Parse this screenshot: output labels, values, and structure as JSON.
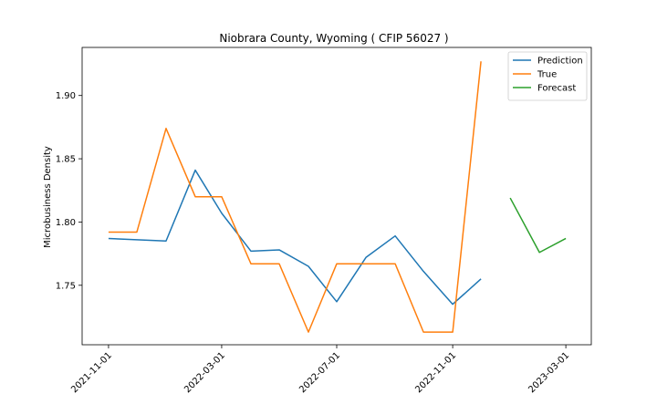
{
  "chart_data": {
    "type": "line",
    "title": "Niobrara County, Wyoming ( CFIP 56027 )",
    "xlabel": "",
    "ylabel": "Microbusiness Density",
    "x_ticks": [
      "2021-11-01",
      "2022-03-01",
      "2022-07-01",
      "2022-11-01",
      "2023-03-01"
    ],
    "y_ticks": [
      "1.75",
      "1.80",
      "1.85",
      "1.90"
    ],
    "xlim": [
      "2021-10-04",
      "2023-03-28"
    ],
    "ylim": [
      1.703,
      1.938
    ],
    "grid": false,
    "legend_position": "top-right",
    "series": [
      {
        "name": "Prediction",
        "color": "#1f77b4",
        "x": [
          "2021-11-01",
          "2021-12-01",
          "2022-01-01",
          "2022-02-01",
          "2022-03-01",
          "2022-04-01",
          "2022-05-01",
          "2022-06-01",
          "2022-07-01",
          "2022-08-01",
          "2022-09-01",
          "2022-10-01",
          "2022-11-01",
          "2022-12-01"
        ],
        "values": [
          1.787,
          1.786,
          1.785,
          1.841,
          1.807,
          1.777,
          1.778,
          1.765,
          1.737,
          1.772,
          1.789,
          1.761,
          1.735,
          1.755
        ]
      },
      {
        "name": "True",
        "color": "#ff7f0e",
        "x": [
          "2021-11-01",
          "2021-12-01",
          "2022-01-01",
          "2022-02-01",
          "2022-03-01",
          "2022-04-01",
          "2022-05-01",
          "2022-06-01",
          "2022-07-01",
          "2022-08-01",
          "2022-09-01",
          "2022-10-01",
          "2022-11-01",
          "2022-12-01"
        ],
        "values": [
          1.792,
          1.792,
          1.874,
          1.82,
          1.82,
          1.767,
          1.767,
          1.713,
          1.767,
          1.767,
          1.767,
          1.713,
          1.713,
          1.927
        ]
      },
      {
        "name": "Forecast",
        "color": "#2ca02c",
        "x": [
          "2023-01-01",
          "2023-02-01",
          "2023-03-01"
        ],
        "values": [
          1.819,
          1.776,
          1.787
        ]
      }
    ]
  }
}
